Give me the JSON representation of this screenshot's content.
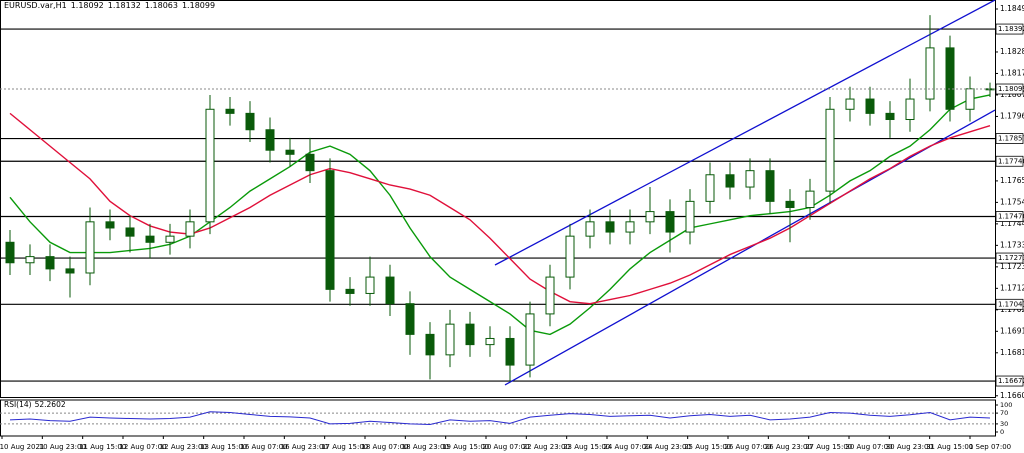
{
  "chart_data": {
    "type": "candlestick",
    "symbol": "EURUSD.var,H1",
    "quote": [
      1.18092,
      1.18132,
      1.18063,
      1.18099
    ],
    "open": [
      1.1735,
      1.1725,
      1.1728,
      1.1722,
      1.172,
      1.1745,
      1.1742,
      1.1738,
      1.1735,
      1.1738,
      1.1745,
      1.18,
      1.1798,
      1.179,
      1.178,
      1.1778,
      1.177,
      1.1712,
      1.171,
      1.1718,
      1.1705,
      1.169,
      1.168,
      1.1695,
      1.1685,
      1.1688,
      1.1675,
      1.17,
      1.1718,
      1.1738,
      1.1745,
      1.174,
      1.1745,
      1.175,
      1.174,
      1.1755,
      1.1768,
      1.1762,
      1.177,
      1.1755,
      1.1752,
      1.176,
      1.18,
      1.1805,
      1.1798,
      1.1795,
      1.1805,
      1.183,
      1.18,
      1.181
    ],
    "high": [
      1.1741,
      1.1734,
      1.1734,
      1.1728,
      1.1752,
      1.1751,
      1.1748,
      1.1744,
      1.1744,
      1.1751,
      1.1807,
      1.1806,
      1.1804,
      1.1796,
      1.1786,
      1.1786,
      1.1776,
      1.1718,
      1.1728,
      1.1724,
      1.1711,
      1.1696,
      1.1702,
      1.1701,
      1.1694,
      1.1694,
      1.1706,
      1.1724,
      1.1744,
      1.1751,
      1.1751,
      1.1751,
      1.1762,
      1.1756,
      1.1761,
      1.1774,
      1.1774,
      1.1776,
      1.1776,
      1.1761,
      1.1766,
      1.1806,
      1.1811,
      1.1811,
      1.1804,
      1.1815,
      1.1846,
      1.1836,
      1.1816,
      1.1813
    ],
    "low": [
      1.1719,
      1.1719,
      1.1716,
      1.1708,
      1.1714,
      1.1736,
      1.173,
      1.1727,
      1.1729,
      1.1732,
      1.1739,
      1.1792,
      1.1784,
      1.1774,
      1.1772,
      1.1764,
      1.1706,
      1.1704,
      1.1704,
      1.1699,
      1.168,
      1.1668,
      1.1674,
      1.1679,
      1.1679,
      1.1667,
      1.1669,
      1.1694,
      1.1712,
      1.1732,
      1.1734,
      1.1734,
      1.1739,
      1.173,
      1.1734,
      1.1749,
      1.1756,
      1.1756,
      1.1749,
      1.1735,
      1.1746,
      1.1754,
      1.1794,
      1.1792,
      1.1786,
      1.1789,
      1.1799,
      1.1794,
      1.1794,
      1.1806
    ],
    "close": [
      1.1725,
      1.1728,
      1.1722,
      1.172,
      1.1745,
      1.1742,
      1.1738,
      1.1735,
      1.1738,
      1.1745,
      1.18,
      1.1798,
      1.179,
      1.178,
      1.1778,
      1.177,
      1.1712,
      1.171,
      1.1718,
      1.1705,
      1.169,
      1.168,
      1.1695,
      1.1685,
      1.1688,
      1.1675,
      1.17,
      1.1718,
      1.1738,
      1.1745,
      1.174,
      1.1745,
      1.175,
      1.174,
      1.1755,
      1.1768,
      1.1762,
      1.177,
      1.1755,
      1.1752,
      1.176,
      1.18,
      1.1805,
      1.1798,
      1.1795,
      1.1805,
      1.183,
      1.18,
      1.181,
      1.181
    ],
    "candle_color": "#0a5a0a",
    "moving_averages": [
      {
        "color": "#0a9a0a",
        "values": [
          1.1757,
          1.1745,
          1.1735,
          1.173,
          1.173,
          1.173,
          1.1731,
          1.1732,
          1.1734,
          1.1738,
          1.1745,
          1.1752,
          1.176,
          1.1766,
          1.1772,
          1.1779,
          1.1782,
          1.1778,
          1.177,
          1.1758,
          1.1742,
          1.1728,
          1.1718,
          1.1712,
          1.1706,
          1.17,
          1.1692,
          1.169,
          1.1695,
          1.1703,
          1.1712,
          1.1722,
          1.173,
          1.1736,
          1.1742,
          1.1744,
          1.1746,
          1.1748,
          1.1749,
          1.175,
          1.1752,
          1.1758,
          1.1765,
          1.177,
          1.1777,
          1.1782,
          1.179,
          1.18,
          1.1805,
          1.1807
        ]
      },
      {
        "color": "#e0103a",
        "values": [
          1.1798,
          1.179,
          1.1782,
          1.1774,
          1.1766,
          1.1755,
          1.1748,
          1.1743,
          1.174,
          1.1739,
          1.1742,
          1.1747,
          1.1752,
          1.1758,
          1.1763,
          1.1768,
          1.1771,
          1.1769,
          1.1766,
          1.1763,
          1.1761,
          1.1758,
          1.1752,
          1.1746,
          1.1737,
          1.1727,
          1.1717,
          1.1711,
          1.1706,
          1.1705,
          1.1707,
          1.1709,
          1.1712,
          1.1715,
          1.1719,
          1.1724,
          1.1729,
          1.1733,
          1.1737,
          1.1742,
          1.1748,
          1.1754,
          1.176,
          1.1766,
          1.1771,
          1.1777,
          1.1782,
          1.1786,
          1.1789,
          1.1792
        ]
      }
    ],
    "trendlines": [
      {
        "color": "#1010d0",
        "x": [
          24.25,
          49.25
        ],
        "y": [
          1.17239,
          1.18534
        ]
      },
      {
        "color": "#1010d0",
        "x": [
          24.75,
          49.25
        ],
        "y": [
          1.16653,
          1.17996
        ]
      }
    ],
    "levels": [
      1.18392,
      1.17857,
      1.17746,
      1.17476,
      1.17273,
      1.17047,
      1.16672
    ],
    "current_price": 1.18099,
    "ylim": [
      1.16594,
      1.18534
    ],
    "yticks": [
      {
        "value": 1.1849,
        "label": "1.18490"
      },
      {
        "value": 1.1828,
        "label": "1.18280"
      },
      1.18175,
      {
        "value": 1.1807,
        "label": "1.18070"
      },
      1.17965,
      {
        "value": 1.1765,
        "label": "1.17650"
      },
      1.17545,
      {
        "value": 1.1744,
        "label": "1.17440"
      },
      1.17335,
      {
        "value": 1.1723,
        "label": "1.17230"
      },
      1.17125,
      {
        "value": 1.1702,
        "label": "1.17020"
      },
      1.16915,
      {
        "value": 1.1681,
        "label": "1.16810"
      },
      {
        "value": 1.166,
        "label": "1.16600"
      }
    ],
    "time_labels": [
      "10 Aug 2021",
      "10 Aug 23:00",
      "11 Aug 15:00",
      "12 Aug 07:00",
      "12 Aug 23:00",
      "13 Aug 15:00",
      "16 Aug 07:00",
      "16 Aug 23:00",
      "17 Aug 15:00",
      "18 Aug 07:00",
      "18 Aug 23:00",
      "19 Aug 15:00",
      "20 Aug 07:00",
      "22 Aug 23:00",
      "23 Aug 15:00",
      "24 Aug 07:00",
      "24 Aug 23:00",
      "25 Aug 15:00",
      "26 Aug 07:00",
      "26 Aug 23:00",
      "27 Aug 15:00",
      "30 Aug 07:00",
      "30 Aug 23:00",
      "31 Aug 15:00",
      "1 Sep 07:00"
    ],
    "rsi": {
      "name": "RSI(14)",
      "last": 52.2602,
      "color": "#2a2ad0",
      "ylim": [
        0,
        100
      ],
      "yticks": [
        100,
        70,
        30,
        0
      ],
      "levels": [
        70,
        30
      ],
      "values": [
        45,
        48,
        42,
        40,
        55,
        52,
        50,
        48,
        50,
        55,
        75,
        72,
        65,
        58,
        56,
        52,
        30,
        32,
        40,
        35,
        30,
        28,
        45,
        40,
        42,
        32,
        55,
        62,
        68,
        65,
        58,
        60,
        62,
        52,
        60,
        65,
        58,
        62,
        45,
        48,
        55,
        72,
        70,
        62,
        58,
        64,
        72,
        45,
        55,
        52
      ]
    }
  }
}
